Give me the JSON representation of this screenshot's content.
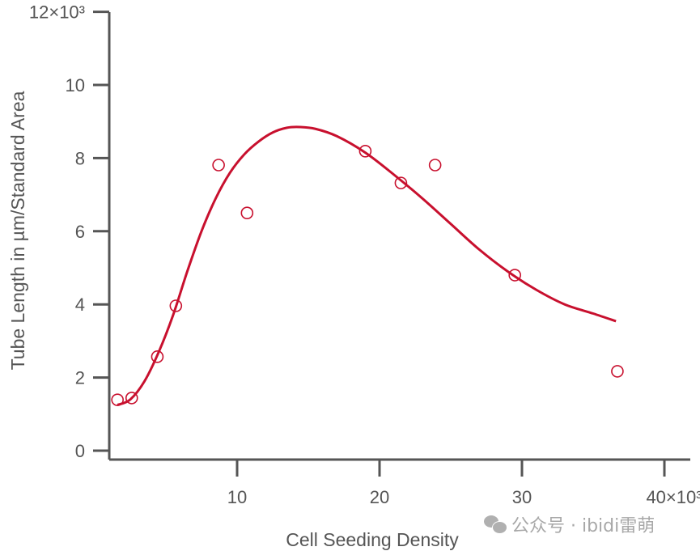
{
  "chart_data": {
    "type": "scatter",
    "xlabel": "Cell Seeding Density",
    "ylabel": "Tube Length in µm/Standard Area",
    "xlim": [
      0,
      40
    ],
    "ylim": [
      0,
      12
    ],
    "x_multiplier": "×10³",
    "y_multiplier": "×10³",
    "xticks": [
      {
        "v": 10,
        "label": "10"
      },
      {
        "v": 20,
        "label": "20"
      },
      {
        "v": 30,
        "label": "30"
      },
      {
        "v": 40,
        "label": "40×10³"
      }
    ],
    "yticks": [
      {
        "v": 0,
        "label": "0"
      },
      {
        "v": 2,
        "label": "2"
      },
      {
        "v": 4,
        "label": "4"
      },
      {
        "v": 6,
        "label": "6"
      },
      {
        "v": 8,
        "label": "8"
      },
      {
        "v": 10,
        "label": "10"
      },
      {
        "v": 12,
        "label": "12×10³"
      }
    ],
    "grid": false,
    "color": "#c8102e",
    "points": {
      "x": [
        1.6,
        2.6,
        4.4,
        5.7,
        8.7,
        10.7,
        19.0,
        21.5,
        23.9,
        29.5,
        36.7
      ],
      "y": [
        1.39,
        1.44,
        2.57,
        3.96,
        7.81,
        6.5,
        8.19,
        7.32,
        7.81,
        4.8,
        2.17
      ]
    },
    "fit_curve": {
      "x": [
        1.6,
        2.5,
        3.5,
        4.5,
        5.5,
        6.5,
        7.5,
        8.5,
        9.5,
        10.5,
        11.5,
        12.5,
        13.5,
        14.4,
        15.5,
        17,
        19,
        21,
        23,
        25,
        27,
        29,
        31,
        33,
        35,
        36.6
      ],
      "y": [
        1.25,
        1.4,
        1.9,
        2.7,
        3.7,
        4.9,
        6.0,
        6.9,
        7.6,
        8.1,
        8.45,
        8.7,
        8.83,
        8.85,
        8.8,
        8.6,
        8.15,
        7.55,
        6.9,
        6.2,
        5.5,
        4.9,
        4.4,
        4.0,
        3.75,
        3.54
      ]
    }
  },
  "watermark": {
    "icon": "wechat-icon",
    "text": "公众号 · ibidi雷萌"
  }
}
